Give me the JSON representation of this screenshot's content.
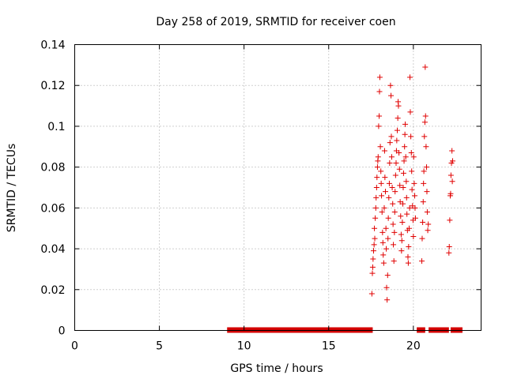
{
  "chart_data": {
    "type": "scatter",
    "title": "Day 258 of 2019, SRMTID for receiver coen",
    "xlabel": "GPS time / hours",
    "ylabel": "SRMTID / TECUs",
    "xlim": [
      0,
      24
    ],
    "ylim": [
      0,
      0.14
    ],
    "xticks": [
      0,
      5,
      10,
      15,
      20
    ],
    "xtick_labels": [
      "0",
      "5",
      "10",
      "15",
      "20"
    ],
    "yticks": [
      0,
      0.02,
      0.04,
      0.06,
      0.08,
      0.1,
      0.12,
      0.14
    ],
    "ytick_labels": [
      "0",
      "0.02",
      "0.04",
      "0.06",
      "0.08",
      "0.1",
      "0.12",
      "0.14"
    ],
    "grid": true,
    "marker": "+",
    "color": "#e00000",
    "zero_segments": [
      [
        9.0,
        17.6
      ],
      [
        20.2,
        20.7
      ],
      [
        20.9,
        22.1
      ],
      [
        22.2,
        22.9
      ]
    ],
    "series": [
      {
        "name": "SRMTID",
        "points": [
          [
            17.55,
            0.018
          ],
          [
            17.58,
            0.028
          ],
          [
            17.6,
            0.031
          ],
          [
            17.62,
            0.035
          ],
          [
            17.65,
            0.039
          ],
          [
            17.68,
            0.042
          ],
          [
            17.7,
            0.05
          ],
          [
            17.72,
            0.045
          ],
          [
            17.75,
            0.055
          ],
          [
            17.78,
            0.06
          ],
          [
            17.8,
            0.065
          ],
          [
            17.83,
            0.07
          ],
          [
            17.85,
            0.075
          ],
          [
            17.88,
            0.08
          ],
          [
            17.9,
            0.083
          ],
          [
            17.92,
            0.085
          ],
          [
            17.95,
            0.1
          ],
          [
            17.98,
            0.105
          ],
          [
            18.0,
            0.117
          ],
          [
            18.02,
            0.124
          ],
          [
            18.05,
            0.09
          ],
          [
            18.08,
            0.078
          ],
          [
            18.1,
            0.072
          ],
          [
            18.12,
            0.066
          ],
          [
            18.15,
            0.058
          ],
          [
            18.18,
            0.048
          ],
          [
            18.2,
            0.043
          ],
          [
            18.22,
            0.037
          ],
          [
            18.25,
            0.033
          ],
          [
            18.28,
            0.06
          ],
          [
            18.3,
            0.088
          ],
          [
            18.32,
            0.075
          ],
          [
            18.35,
            0.068
          ],
          [
            18.38,
            0.05
          ],
          [
            18.4,
            0.04
          ],
          [
            18.42,
            0.021
          ],
          [
            18.45,
            0.015
          ],
          [
            18.48,
            0.027
          ],
          [
            18.5,
            0.045
          ],
          [
            18.52,
            0.055
          ],
          [
            18.55,
            0.065
          ],
          [
            18.58,
            0.072
          ],
          [
            18.6,
            0.082
          ],
          [
            18.62,
            0.092
          ],
          [
            18.65,
            0.12
          ],
          [
            18.68,
            0.115
          ],
          [
            18.7,
            0.095
          ],
          [
            18.72,
            0.085
          ],
          [
            18.75,
            0.07
          ],
          [
            18.78,
            0.062
          ],
          [
            18.8,
            0.052
          ],
          [
            18.82,
            0.042
          ],
          [
            18.85,
            0.034
          ],
          [
            18.88,
            0.048
          ],
          [
            18.9,
            0.058
          ],
          [
            18.92,
            0.068
          ],
          [
            18.95,
            0.076
          ],
          [
            18.98,
            0.082
          ],
          [
            19.0,
            0.088
          ],
          [
            19.02,
            0.093
          ],
          [
            19.05,
            0.098
          ],
          [
            19.08,
            0.104
          ],
          [
            19.1,
            0.112
          ],
          [
            19.12,
            0.11
          ],
          [
            19.15,
            0.087
          ],
          [
            19.18,
            0.079
          ],
          [
            19.2,
            0.071
          ],
          [
            19.22,
            0.063
          ],
          [
            19.25,
            0.056
          ],
          [
            19.28,
            0.047
          ],
          [
            19.3,
            0.039
          ],
          [
            19.32,
            0.044
          ],
          [
            19.35,
            0.053
          ],
          [
            19.38,
            0.062
          ],
          [
            19.4,
            0.07
          ],
          [
            19.42,
            0.077
          ],
          [
            19.45,
            0.083
          ],
          [
            19.48,
            0.09
          ],
          [
            19.5,
            0.096
          ],
          [
            19.52,
            0.101
          ],
          [
            19.55,
            0.085
          ],
          [
            19.58,
            0.073
          ],
          [
            19.6,
            0.065
          ],
          [
            19.62,
            0.057
          ],
          [
            19.65,
            0.049
          ],
          [
            19.68,
            0.036
          ],
          [
            19.7,
            0.033
          ],
          [
            19.72,
            0.041
          ],
          [
            19.75,
            0.05
          ],
          [
            19.78,
            0.06
          ],
          [
            19.8,
            0.124
          ],
          [
            19.82,
            0.107
          ],
          [
            19.85,
            0.095
          ],
          [
            19.88,
            0.087
          ],
          [
            19.9,
            0.078
          ],
          [
            19.92,
            0.069
          ],
          [
            19.95,
            0.061
          ],
          [
            19.98,
            0.054
          ],
          [
            20.0,
            0.046
          ],
          [
            20.02,
            0.085
          ],
          [
            20.05,
            0.072
          ],
          [
            20.08,
            0.066
          ],
          [
            20.1,
            0.06
          ],
          [
            20.12,
            0.055
          ],
          [
            20.5,
            0.034
          ],
          [
            20.52,
            0.045
          ],
          [
            20.55,
            0.053
          ],
          [
            20.58,
            0.063
          ],
          [
            20.6,
            0.072
          ],
          [
            20.62,
            0.078
          ],
          [
            20.65,
            0.095
          ],
          [
            20.68,
            0.102
          ],
          [
            20.7,
            0.129
          ],
          [
            20.72,
            0.105
          ],
          [
            20.75,
            0.09
          ],
          [
            20.78,
            0.08
          ],
          [
            20.8,
            0.068
          ],
          [
            20.82,
            0.058
          ],
          [
            20.85,
            0.049
          ],
          [
            20.88,
            0.052
          ],
          [
            22.1,
            0.038
          ],
          [
            22.12,
            0.041
          ],
          [
            22.15,
            0.054
          ],
          [
            22.18,
            0.066
          ],
          [
            22.2,
            0.067
          ],
          [
            22.22,
            0.076
          ],
          [
            22.25,
            0.082
          ],
          [
            22.28,
            0.088
          ],
          [
            22.3,
            0.073
          ],
          [
            22.32,
            0.083
          ]
        ]
      }
    ]
  }
}
